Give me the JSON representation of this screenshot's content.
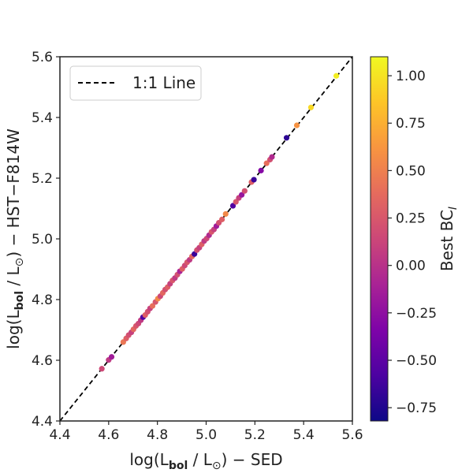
{
  "chart_data": {
    "type": "scatter",
    "xlabel": "log(L_bol / L_⊙) − SED",
    "ylabel": "log(L_bol / L_⊙) − HST−F814W",
    "xlim": [
      4.4,
      5.6
    ],
    "ylim": [
      4.4,
      5.6
    ],
    "x_ticks": [
      "4.4",
      "4.6",
      "4.8",
      "5.0",
      "5.2",
      "5.4",
      "5.6"
    ],
    "y_ticks": [
      "4.4",
      "4.6",
      "4.8",
      "5.0",
      "5.2",
      "5.4",
      "5.6"
    ],
    "grid": false,
    "legend": {
      "position": "top-left",
      "entries": [
        "1:1 Line"
      ]
    },
    "reference_line": {
      "name": "1:1 Line",
      "style": "dashed",
      "color": "#000000"
    },
    "colorbar": {
      "label": "Best BC_I",
      "range": [
        -0.82,
        1.1
      ],
      "ticks": [
        "1.00",
        "0.75",
        "0.50",
        "0.25",
        "0.00",
        "−0.25",
        "−0.50",
        "−0.75"
      ],
      "tick_values": [
        1.0,
        0.75,
        0.5,
        0.25,
        0.0,
        -0.25,
        -0.5,
        -0.75
      ],
      "colormap": "plasma"
    },
    "points": [
      {
        "x": 4.572,
        "y": 4.572,
        "c": 0.15
      },
      {
        "x": 4.6,
        "y": 4.601,
        "c": 0.05
      },
      {
        "x": 4.612,
        "y": 4.611,
        "c": -0.15
      },
      {
        "x": 4.66,
        "y": 4.66,
        "c": 0.45
      },
      {
        "x": 4.672,
        "y": 4.672,
        "c": 0.3
      },
      {
        "x": 4.682,
        "y": 4.683,
        "c": 0.2
      },
      {
        "x": 4.693,
        "y": 4.692,
        "c": 0.1
      },
      {
        "x": 4.702,
        "y": 4.702,
        "c": 0.35
      },
      {
        "x": 4.712,
        "y": 4.713,
        "c": 0.25
      },
      {
        "x": 4.722,
        "y": 4.721,
        "c": 0.15
      },
      {
        "x": 4.732,
        "y": 4.732,
        "c": 0.05
      },
      {
        "x": 4.741,
        "y": 4.742,
        "c": -0.55
      },
      {
        "x": 4.75,
        "y": 4.749,
        "c": 0.3
      },
      {
        "x": 4.76,
        "y": 4.76,
        "c": 0.2
      },
      {
        "x": 4.77,
        "y": 4.771,
        "c": 0.1
      },
      {
        "x": 4.78,
        "y": 4.779,
        "c": 0.4
      },
      {
        "x": 4.792,
        "y": 4.792,
        "c": 0.25
      },
      {
        "x": 4.802,
        "y": 4.803,
        "c": 0.55
      },
      {
        "x": 4.812,
        "y": 4.811,
        "c": 0.15
      },
      {
        "x": 4.822,
        "y": 4.822,
        "c": 0.35
      },
      {
        "x": 4.832,
        "y": 4.833,
        "c": 0.2
      },
      {
        "x": 4.842,
        "y": 4.841,
        "c": 0.3
      },
      {
        "x": 4.852,
        "y": 4.852,
        "c": 0.1
      },
      {
        "x": 4.862,
        "y": 4.863,
        "c": 0.25
      },
      {
        "x": 4.872,
        "y": 4.871,
        "c": 0.05
      },
      {
        "x": 4.882,
        "y": 4.882,
        "c": 0.2
      },
      {
        "x": 4.892,
        "y": 4.893,
        "c": -0.1
      },
      {
        "x": 4.902,
        "y": 4.901,
        "c": 0.3
      },
      {
        "x": 4.912,
        "y": 4.912,
        "c": 0.15
      },
      {
        "x": 4.922,
        "y": 4.923,
        "c": 0.25
      },
      {
        "x": 4.932,
        "y": 4.931,
        "c": 0.05
      },
      {
        "x": 4.942,
        "y": 4.942,
        "c": 0.35
      },
      {
        "x": 4.952,
        "y": 4.95,
        "c": -0.65
      },
      {
        "x": 4.962,
        "y": 4.963,
        "c": 0.2
      },
      {
        "x": 4.972,
        "y": 4.971,
        "c": 0.1
      },
      {
        "x": 4.982,
        "y": 4.982,
        "c": 0.3
      },
      {
        "x": 4.992,
        "y": 4.993,
        "c": 0.05
      },
      {
        "x": 5.002,
        "y": 5.001,
        "c": 0.15
      },
      {
        "x": 5.012,
        "y": 5.012,
        "c": -0.05
      },
      {
        "x": 5.022,
        "y": 5.023,
        "c": 0.25
      },
      {
        "x": 5.032,
        "y": 5.031,
        "c": 0.1
      },
      {
        "x": 5.042,
        "y": 5.042,
        "c": -0.15
      },
      {
        "x": 5.052,
        "y": 5.053,
        "c": 0.2
      },
      {
        "x": 5.065,
        "y": 5.064,
        "c": 0.3
      },
      {
        "x": 5.08,
        "y": 5.082,
        "c": 0.55
      },
      {
        "x": 5.11,
        "y": 5.109,
        "c": -0.55
      },
      {
        "x": 5.122,
        "y": 5.122,
        "c": 0.25
      },
      {
        "x": 5.134,
        "y": 5.135,
        "c": 0.1
      },
      {
        "x": 5.146,
        "y": 5.145,
        "c": -0.2
      },
      {
        "x": 5.158,
        "y": 5.158,
        "c": 0.2
      },
      {
        "x": 5.186,
        "y": 5.187,
        "c": 0.3
      },
      {
        "x": 5.196,
        "y": 5.195,
        "c": -0.65
      },
      {
        "x": 5.225,
        "y": 5.225,
        "c": -0.3
      },
      {
        "x": 5.248,
        "y": 5.249,
        "c": 0.4
      },
      {
        "x": 5.262,
        "y": 5.261,
        "c": 0.2
      },
      {
        "x": 5.27,
        "y": 5.27,
        "c": -0.05
      },
      {
        "x": 5.33,
        "y": 5.333,
        "c": -0.7
      },
      {
        "x": 5.372,
        "y": 5.374,
        "c": 0.6
      },
      {
        "x": 5.43,
        "y": 5.433,
        "c": 0.95
      },
      {
        "x": 5.534,
        "y": 5.537,
        "c": 1.05
      }
    ]
  }
}
